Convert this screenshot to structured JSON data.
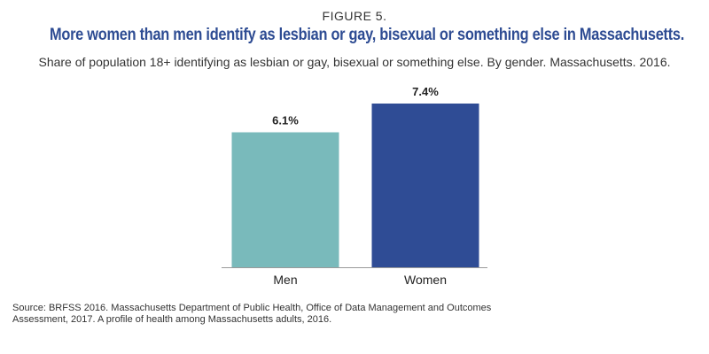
{
  "figure_label": "FIGURE 5.",
  "title": "More women than men identify as lesbian or gay, bisexual or something else in Massachusetts.",
  "subtitle": "Share of population 18+ identifying as lesbian or gay, bisexual or something else. By gender. Massachusetts. 2016.",
  "source": "Source: BRFSS 2016. Massachusetts Department of Public Health, Office of Data Management and Outcomes Assessment, 2017. A profile of health among Massachusetts adults, 2016.",
  "colors": {
    "title": "#2e4c93",
    "men": "#79babb",
    "women": "#2f4c95",
    "axis": "#9a9a9a"
  },
  "chart_data": {
    "type": "bar",
    "categories": [
      "Men",
      "Women"
    ],
    "values": [
      6.1,
      7.4
    ],
    "data_labels": [
      "6.1%",
      "7.4%"
    ],
    "ylim": [
      0,
      7.4
    ],
    "xlabel": "",
    "ylabel": "",
    "grid": false,
    "legend": "none"
  }
}
